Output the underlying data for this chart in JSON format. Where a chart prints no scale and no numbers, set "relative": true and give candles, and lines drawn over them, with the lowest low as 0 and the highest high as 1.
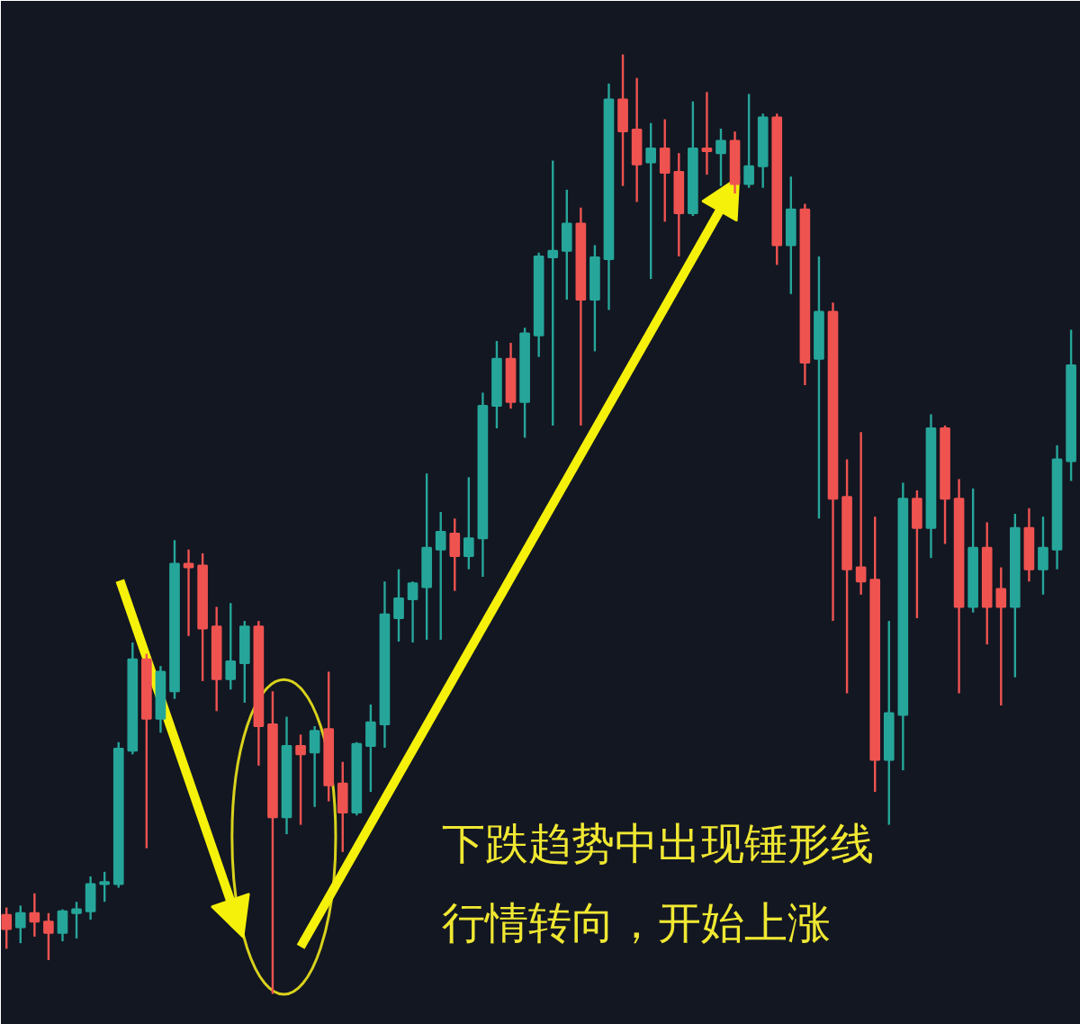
{
  "chart_data": {
    "type": "candlestick",
    "relative": true,
    "categories": [
      null,
      null,
      null,
      null,
      null,
      null,
      null,
      null,
      null,
      null,
      null,
      null,
      null,
      null,
      null,
      null,
      null,
      null,
      null,
      null,
      null,
      null,
      null,
      null,
      null,
      null,
      null,
      null,
      null,
      null,
      null,
      null,
      null,
      null,
      null,
      null,
      null,
      null,
      null,
      null,
      null,
      null,
      null,
      null,
      null,
      null,
      null,
      null,
      null,
      null,
      null,
      null,
      null,
      null,
      null,
      null,
      null,
      null,
      null,
      null,
      null,
      null,
      null,
      null,
      null,
      null,
      null,
      null,
      null,
      null,
      null,
      null,
      null,
      null,
      null,
      null,
      null
    ],
    "ohlc": [
      [
        0.084,
        0.092,
        0.048,
        0.069
      ],
      [
        0.071,
        0.094,
        0.054,
        0.086
      ],
      [
        0.086,
        0.107,
        0.061,
        0.077
      ],
      [
        0.077,
        0.086,
        0.036,
        0.065
      ],
      [
        0.065,
        0.09,
        0.056,
        0.088
      ],
      [
        0.086,
        0.098,
        0.059,
        0.09
      ],
      [
        0.088,
        0.125,
        0.079,
        0.117
      ],
      [
        0.117,
        0.13,
        0.098,
        0.119
      ],
      [
        0.117,
        0.268,
        0.113,
        0.261
      ],
      [
        0.259,
        0.374,
        0.255,
        0.356
      ],
      [
        0.356,
        0.362,
        0.155,
        0.293
      ],
      [
        0.293,
        0.349,
        0.278,
        0.343
      ],
      [
        0.322,
        0.483,
        0.314,
        0.458
      ],
      [
        0.458,
        0.473,
        0.381,
        0.454
      ],
      [
        0.456,
        0.469,
        0.333,
        0.389
      ],
      [
        0.391,
        0.412,
        0.301,
        0.335
      ],
      [
        0.335,
        0.416,
        0.324,
        0.354
      ],
      [
        0.352,
        0.397,
        0.31,
        0.391
      ],
      [
        0.391,
        0.397,
        0.243,
        0.285
      ],
      [
        0.287,
        0.322,
        0.0,
        0.188
      ],
      [
        0.188,
        0.295,
        0.17,
        0.264
      ],
      [
        0.264,
        0.276,
        0.18,
        0.255
      ],
      [
        0.257,
        0.285,
        0.199,
        0.28
      ],
      [
        0.282,
        0.343,
        0.205,
        0.222
      ],
      [
        0.224,
        0.247,
        0.151,
        0.193
      ],
      [
        0.193,
        0.268,
        0.19,
        0.266
      ],
      [
        0.264,
        0.308,
        0.215,
        0.289
      ],
      [
        0.287,
        0.439,
        0.262,
        0.404
      ],
      [
        0.4,
        0.452,
        0.375,
        0.421
      ],
      [
        0.42,
        0.439,
        0.374,
        0.437
      ],
      [
        0.433,
        0.554,
        0.377,
        0.475
      ],
      [
        0.473,
        0.513,
        0.377,
        0.492
      ],
      [
        0.49,
        0.506,
        0.429,
        0.466
      ],
      [
        0.466,
        0.55,
        0.452,
        0.485
      ],
      [
        0.485,
        0.64,
        0.444,
        0.626
      ],
      [
        0.626,
        0.695,
        0.602,
        0.676
      ],
      [
        0.676,
        0.693,
        0.623,
        0.63
      ],
      [
        0.63,
        0.709,
        0.592,
        0.703
      ],
      [
        0.701,
        0.789,
        0.678,
        0.785
      ],
      [
        0.784,
        0.887,
        0.605,
        0.791
      ],
      [
        0.791,
        0.856,
        0.739,
        0.82
      ],
      [
        0.82,
        0.837,
        0.605,
        0.739
      ],
      [
        0.739,
        0.797,
        0.684,
        0.784
      ],
      [
        0.782,
        0.969,
        0.728,
        0.952
      ],
      [
        0.952,
        1.0,
        0.86,
        0.918
      ],
      [
        0.92,
        0.975,
        0.843,
        0.883
      ],
      [
        0.885,
        0.927,
        0.761,
        0.9
      ],
      [
        0.9,
        0.931,
        0.822,
        0.874
      ],
      [
        0.875,
        0.895,
        0.785,
        0.831
      ],
      [
        0.831,
        0.95,
        0.828,
        0.9
      ],
      [
        0.9,
        0.96,
        0.872,
        0.897
      ],
      [
        0.895,
        0.921,
        0.86,
        0.908
      ],
      [
        0.908,
        0.918,
        0.852,
        0.862
      ],
      [
        0.862,
        0.958,
        0.858,
        0.881
      ],
      [
        0.881,
        0.937,
        0.858,
        0.933
      ],
      [
        0.933,
        0.937,
        0.776,
        0.797
      ],
      [
        0.797,
        0.87,
        0.745,
        0.835
      ],
      [
        0.835,
        0.841,
        0.648,
        0.672
      ],
      [
        0.676,
        0.785,
        0.506,
        0.726
      ],
      [
        0.726,
        0.736,
        0.397,
        0.527
      ],
      [
        0.529,
        0.569,
        0.32,
        0.452
      ],
      [
        0.454,
        0.598,
        0.425,
        0.439
      ],
      [
        0.441,
        0.508,
        0.215,
        0.249
      ],
      [
        0.249,
        0.397,
        0.18,
        0.299
      ],
      [
        0.297,
        0.544,
        0.238,
        0.527
      ],
      [
        0.527,
        0.536,
        0.4,
        0.496
      ],
      [
        0.496,
        0.617,
        0.464,
        0.602
      ],
      [
        0.602,
        0.605,
        0.479,
        0.527
      ],
      [
        0.527,
        0.548,
        0.32,
        0.412
      ],
      [
        0.412,
        0.538,
        0.406,
        0.475
      ],
      [
        0.475,
        0.502,
        0.372,
        0.412
      ],
      [
        0.431,
        0.454,
        0.307,
        0.412
      ],
      [
        0.412,
        0.511,
        0.337,
        0.496
      ],
      [
        0.496,
        0.517,
        0.439,
        0.452
      ],
      [
        0.452,
        0.508,
        0.425,
        0.475
      ],
      [
        0.473,
        0.584,
        0.452,
        0.569
      ],
      [
        0.567,
        0.707,
        0.546,
        0.669
      ]
    ],
    "annotations": [
      "下跌趋势中出现锤形线",
      "行情转向，开始上涨"
    ]
  }
}
